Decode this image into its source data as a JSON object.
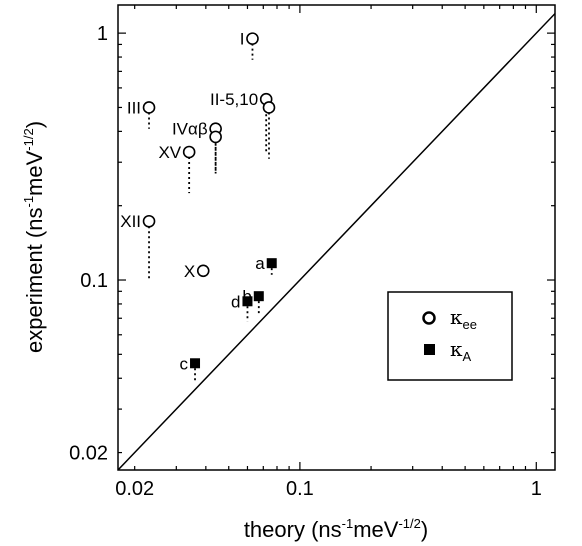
{
  "chart_data": {
    "type": "scatter",
    "xscale": "log",
    "yscale": "log",
    "xlim": [
      0.017,
      1.2
    ],
    "ylim": [
      0.017,
      1.3
    ],
    "x_ticks": [
      {
        "value": 0.02,
        "label": "0.02"
      },
      {
        "value": 0.1,
        "label": "0.1"
      },
      {
        "value": 1,
        "label": "1"
      }
    ],
    "y_ticks": [
      {
        "value": 0.02,
        "label": "0.02"
      },
      {
        "value": 0.1,
        "label": "0.1"
      },
      {
        "value": 1,
        "label": "1"
      }
    ],
    "xlabel": {
      "main": "theory (ns",
      "sup1": "-1",
      "mid": "meV",
      "sup2": "-1/2",
      "end": ")"
    },
    "ylabel": {
      "main": "experiment  (ns",
      "sup1": "-1",
      "mid": "meV",
      "sup2": "-1/2",
      "end": ")"
    },
    "grid": false,
    "legend": {
      "position": "bottom-right",
      "entries": [
        {
          "symbol": "κ",
          "sub": "ee",
          "marker": "open-circle"
        },
        {
          "symbol": "κ",
          "sub": "A",
          "marker": "filled-square"
        }
      ]
    },
    "reference_line": {
      "style": "solid",
      "points": [
        [
          0.017,
          0.017
        ],
        [
          1.2,
          1.2
        ]
      ]
    },
    "series": [
      {
        "marker": "open-circle",
        "points": [
          {
            "label": "I",
            "x": 0.063,
            "y": 0.95,
            "drop_to": 0.78
          },
          {
            "label": "II-5,10",
            "x": 0.072,
            "y": 0.54,
            "drop_to": 0.33
          },
          {
            "label": "",
            "x": 0.074,
            "y": 0.5,
            "drop_to": 0.31
          },
          {
            "label": "III",
            "x": 0.023,
            "y": 0.5,
            "drop_to": 0.41
          },
          {
            "label": "IVαβ",
            "x": 0.044,
            "y": 0.41,
            "drop_to": 0.27
          },
          {
            "label": "",
            "x": 0.044,
            "y": 0.38,
            "drop_to": 0.27
          },
          {
            "label": "XV",
            "x": 0.034,
            "y": 0.33,
            "drop_to": 0.225
          },
          {
            "label": "XII",
            "x": 0.023,
            "y": 0.173,
            "drop_to": 0.1
          },
          {
            "label": "X",
            "x": 0.039,
            "y": 0.109,
            "drop_to": null
          }
        ]
      },
      {
        "marker": "filled-square",
        "points": [
          {
            "label": "a",
            "x": 0.076,
            "y": 0.117,
            "drop_to": 0.105
          },
          {
            "label": "b",
            "x": 0.067,
            "y": 0.086,
            "drop_to": 0.072
          },
          {
            "label": "d",
            "x": 0.06,
            "y": 0.082,
            "drop_to": 0.068
          },
          {
            "label": "c",
            "x": 0.036,
            "y": 0.046,
            "drop_to": 0.039
          }
        ]
      }
    ]
  }
}
